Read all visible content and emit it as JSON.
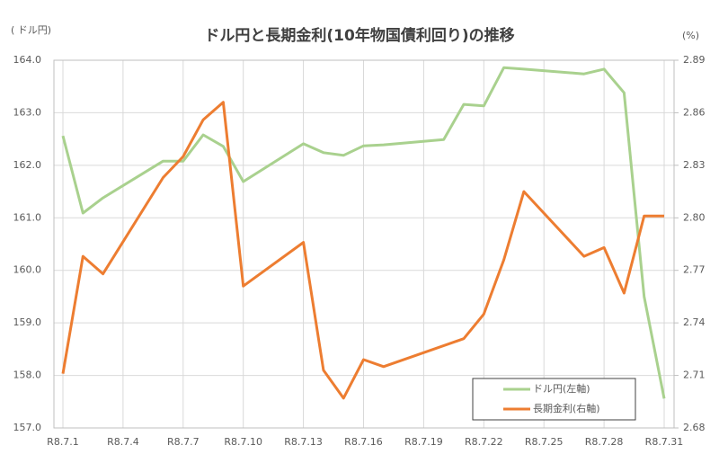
{
  "chart_data": {
    "type": "line",
    "title": "ドル円と長期金利(10年物国債利回り)の推移",
    "y_label": "( ドル円)",
    "y2_label": "(%)",
    "xlim": [
      1,
      31
    ],
    "xticks": [
      {
        "value": 1,
        "label": "R8.7.1"
      },
      {
        "value": 4,
        "label": "R8.7.4"
      },
      {
        "value": 7,
        "label": "R8.7.7"
      },
      {
        "value": 10,
        "label": "R8.7.10"
      },
      {
        "value": 13,
        "label": "R8.7.13"
      },
      {
        "value": 16,
        "label": "R8.7.16"
      },
      {
        "value": 19,
        "label": "R8.7.19"
      },
      {
        "value": 22,
        "label": "R8.7.22"
      },
      {
        "value": 25,
        "label": "R8.7.25"
      },
      {
        "value": 28,
        "label": "R8.7.28"
      },
      {
        "value": 31,
        "label": "R8.7.31"
      }
    ],
    "ylim": [
      157,
      164
    ],
    "yticks": [
      {
        "value": 157,
        "label": "157.0"
      },
      {
        "value": 158,
        "label": "158.0"
      },
      {
        "value": 159,
        "label": "159.0"
      },
      {
        "value": 160,
        "label": "160.0"
      },
      {
        "value": 161,
        "label": "161.0"
      },
      {
        "value": 162,
        "label": "162.0"
      },
      {
        "value": 163,
        "label": "163.0"
      },
      {
        "value": 164,
        "label": "164.0"
      }
    ],
    "y2lim": [
      2.68,
      2.89
    ],
    "y2ticks": [
      2.68,
      2.71,
      2.74,
      2.77,
      {
        "value": 2.8,
        "label": "2.80"
      },
      2.83,
      2.86,
      2.89
    ],
    "grid": true,
    "legend": "lower right",
    "series": [
      {
        "name": "ドル円(左軸)",
        "color": "#a9d18e",
        "x": [
          1,
          2,
          3,
          6,
          7,
          8,
          9,
          10,
          13,
          14,
          15,
          16,
          17,
          20,
          21,
          22,
          23,
          24,
          27,
          28,
          29,
          30,
          31
        ],
        "values": [
          162.56,
          161.09,
          161.38,
          162.08,
          162.08,
          162.58,
          162.36,
          161.69,
          162.41,
          162.24,
          162.19,
          162.37,
          162.39,
          162.49,
          163.16,
          163.13,
          163.86,
          163.83,
          163.74,
          163.83,
          163.38,
          159.5,
          157.56
        ]
      },
      {
        "name": "長期金利(右軸)",
        "color": "#ed7d31",
        "axis": "y2",
        "x": [
          1,
          2,
          3,
          6,
          7,
          8,
          9,
          10,
          13,
          14,
          15,
          16,
          17,
          21,
          22,
          23,
          24,
          27,
          28,
          29,
          30,
          31
        ],
        "values": [
          2.711,
          2.778,
          2.768,
          2.823,
          2.835,
          2.856,
          2.866,
          2.761,
          2.786,
          2.713,
          2.697,
          2.719,
          2.715,
          2.731,
          2.745,
          2.776,
          2.815,
          2.778,
          2.783,
          2.757,
          2.801,
          2.801
        ]
      }
    ]
  }
}
